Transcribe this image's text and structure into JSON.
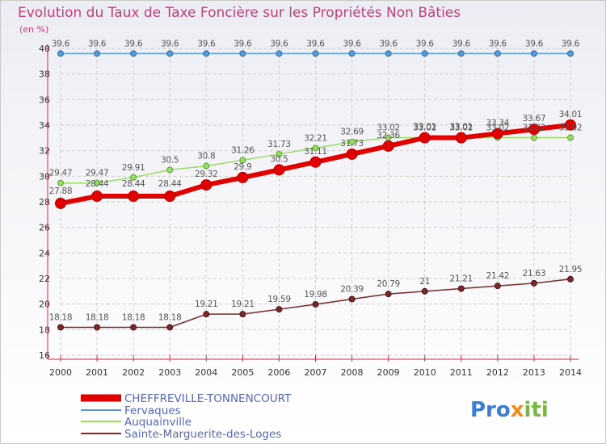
{
  "chart_data": {
    "type": "line",
    "title": "Evolution du Taux de Taxe Foncière sur les Propriétés Non Bâties",
    "ylabel": "(en %)",
    "xlabel": "",
    "ylim": [
      16,
      40
    ],
    "yticks": [
      16,
      18,
      20,
      22,
      24,
      26,
      28,
      30,
      32,
      34,
      36,
      38,
      40
    ],
    "x": [
      2000,
      2001,
      2002,
      2003,
      2004,
      2005,
      2006,
      2007,
      2008,
      2009,
      2010,
      2011,
      2012,
      2013,
      2014
    ],
    "series": [
      {
        "name": "CHEFFREVILLE-TONNENCOURT",
        "color": "#e00000",
        "values": [
          27.88,
          28.44,
          28.44,
          28.44,
          29.32,
          29.9,
          30.5,
          31.11,
          31.73,
          32.36,
          33.01,
          33.01,
          33.34,
          33.67,
          34.01
        ],
        "labels": [
          "27.88",
          "28.44",
          "28.44",
          "28.44",
          "29.32",
          "29.9",
          "30.5",
          "31.11",
          "31.73",
          "32.36",
          "33.01",
          "33.01",
          "33.34",
          "33.67",
          "34.01"
        ]
      },
      {
        "name": "Fervaques",
        "color": "#5b9bd5",
        "values": [
          39.6,
          39.6,
          39.6,
          39.6,
          39.6,
          39.6,
          39.6,
          39.6,
          39.6,
          39.6,
          39.6,
          39.6,
          39.6,
          39.6,
          39.6
        ],
        "labels": [
          "39.6",
          "39.6",
          "39.6",
          "39.6",
          "39.6",
          "39.6",
          "39.6",
          "39.6",
          "39.6",
          "39.6",
          "39.6",
          "39.6",
          "39.6",
          "39.6",
          "39.6"
        ]
      },
      {
        "name": "Auquainville",
        "color": "#99dd66",
        "values": [
          29.47,
          29.47,
          29.91,
          30.5,
          30.8,
          31.26,
          31.73,
          32.21,
          32.69,
          33.02,
          33.02,
          33.02,
          33.02,
          33.02,
          33.02
        ],
        "labels": [
          "29.47",
          "29.47",
          "29.91",
          "30.5",
          "30.8",
          "31.26",
          "31.73",
          "32.21",
          "32.69",
          "33.02",
          "33.02",
          "33.02",
          "33.02",
          "33.02",
          "33.02"
        ]
      },
      {
        "name": "Sainte-Marguerite-des-Loges",
        "color": "#7a2a2a",
        "values": [
          18.18,
          18.18,
          18.18,
          18.18,
          19.21,
          19.21,
          19.59,
          19.98,
          20.39,
          20.79,
          21,
          21.21,
          21.42,
          21.63,
          21.95
        ],
        "labels": [
          "18.18",
          "18.18",
          "18.18",
          "18.18",
          "19.21",
          "19.21",
          "19.59",
          "19.98",
          "20.39",
          "20.79",
          "21",
          "21.21",
          "21.42",
          "21.63",
          "21.95"
        ]
      }
    ],
    "legend": "bottom-left"
  },
  "brand": {
    "part1": "Pro",
    "part2": "x",
    "part3": "iti"
  }
}
